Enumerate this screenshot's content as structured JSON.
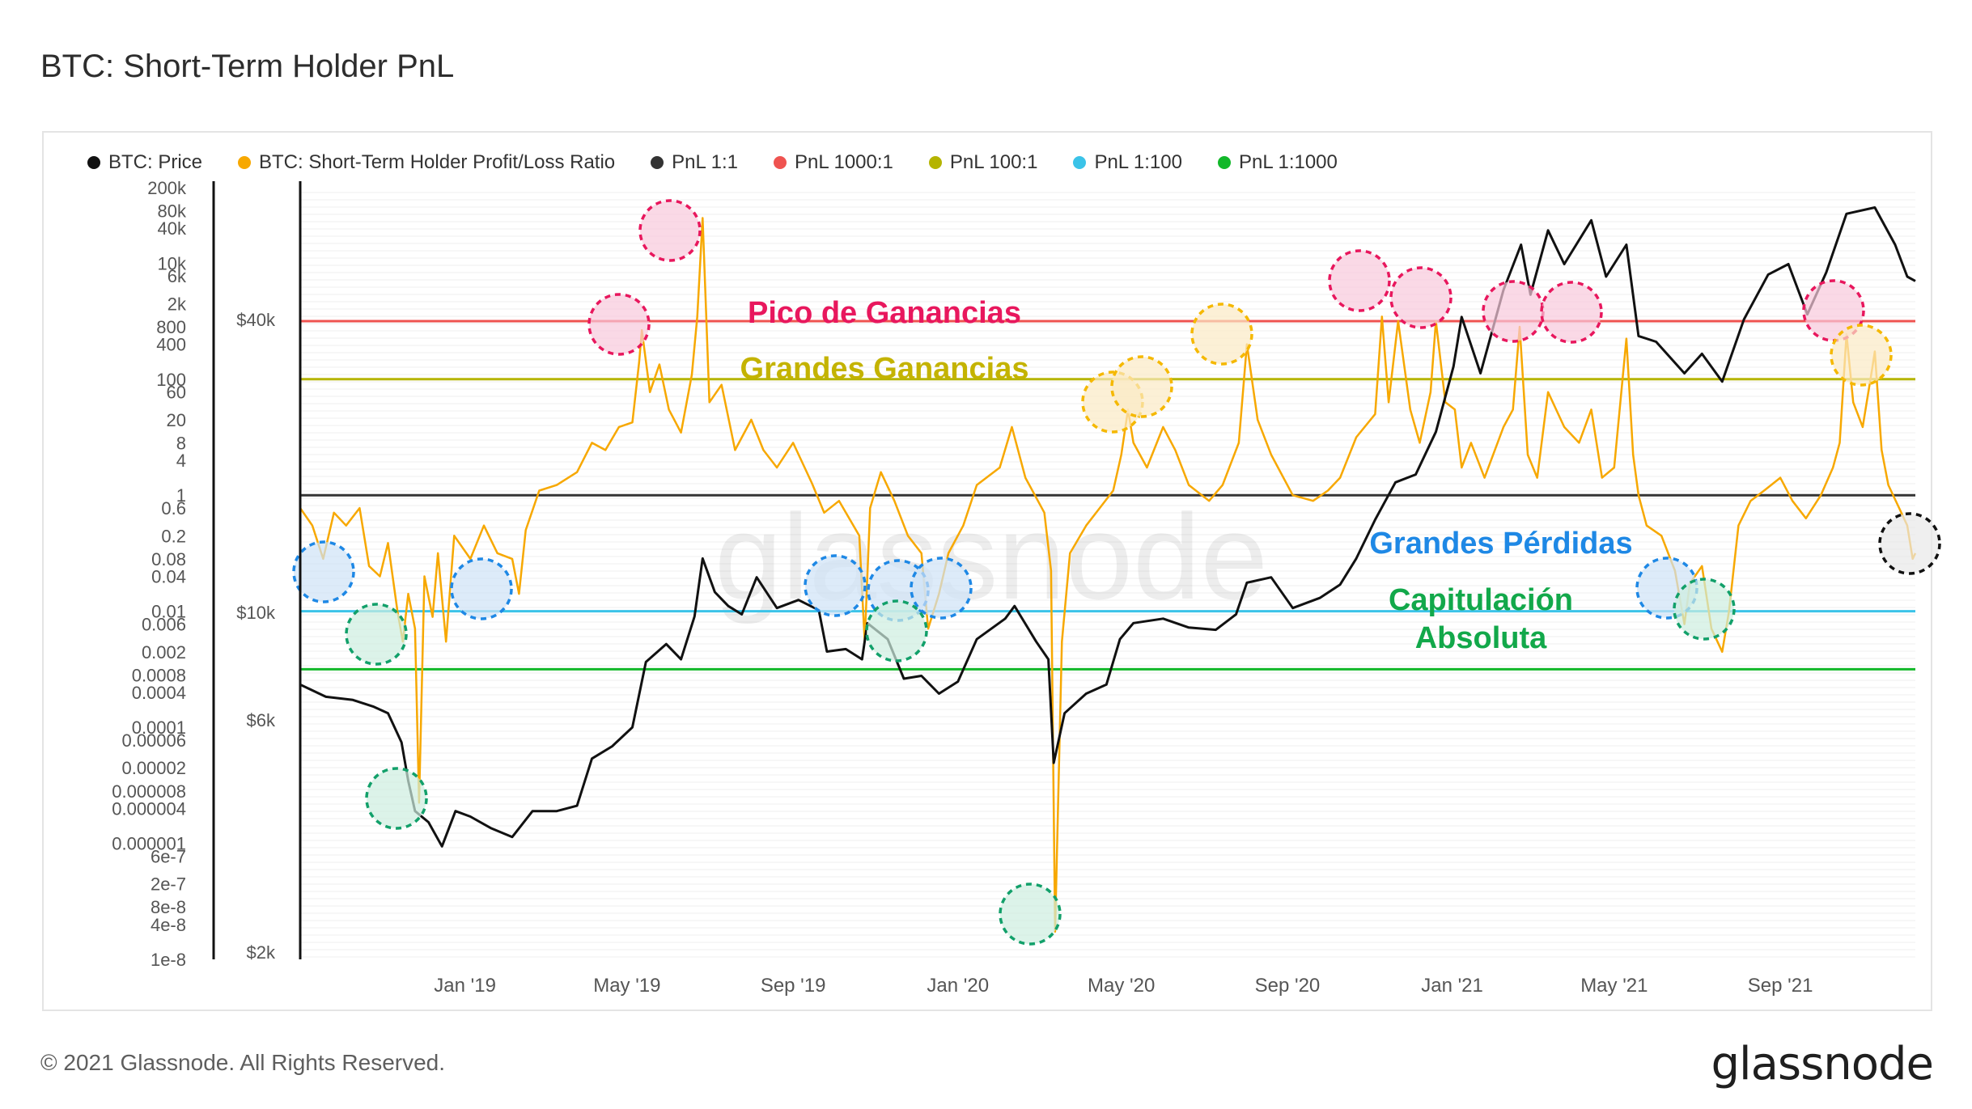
{
  "page": {
    "title": "BTC: Short-Term Holder PnL",
    "copyright": "© 2021 Glassnode. All Rights Reserved.",
    "logo_text": "glassnode",
    "watermark_text": "glassnode"
  },
  "legend": [
    {
      "label": "BTC: Price",
      "color": "#111111"
    },
    {
      "label": "BTC: Short-Term Holder Profit/Loss Ratio",
      "color": "#f7a800"
    },
    {
      "label": "PnL 1:1",
      "color": "#333333"
    },
    {
      "label": "PnL 1000:1",
      "color": "#ef5350"
    },
    {
      "label": "PnL 100:1",
      "color": "#b5b400"
    },
    {
      "label": "PnL 1:100",
      "color": "#3bc3e8"
    },
    {
      "label": "PnL 1:1000",
      "color": "#12b82a"
    }
  ],
  "annotations": [
    {
      "text": "Pico de Ganancias",
      "color": "#e8175d"
    },
    {
      "text": "Grandes Ganancias",
      "color": "#c4b300"
    },
    {
      "text": "Grandes Pérdidas",
      "color": "#1e88e5"
    },
    {
      "text": "Capitulación",
      "color": "#12a84a"
    },
    {
      "text": "Absoluta",
      "color": "#12a84a"
    }
  ],
  "chart_data": {
    "type": "line",
    "title": "BTC: Short-Term Holder PnL",
    "x_ticks": [
      "Jan '19",
      "May '19",
      "Sep '19",
      "Jan '20",
      "May '20",
      "Sep '20",
      "Jan '21",
      "May '21",
      "Sep '21"
    ],
    "x_range": [
      "2018-09-01",
      "2021-12-10"
    ],
    "left_axis": {
      "scale": "log",
      "ticks": [
        "200k",
        "80k",
        "40k",
        "10k",
        "6k",
        "2k",
        "800",
        "400",
        "100",
        "60",
        "20",
        "8",
        "4",
        "1",
        "0.6",
        "0.2",
        "0.08",
        "0.04",
        "0.01",
        "0.006",
        "0.002",
        "0.0008",
        "0.0004",
        "0.0001",
        "0.00006",
        "0.00002",
        "0.000008",
        "0.000004",
        "0.000001",
        "6e-7",
        "2e-7",
        "8e-8",
        "4e-8",
        "1e-8"
      ],
      "range": [
        1e-08,
        200000
      ]
    },
    "right_axis": {
      "scale": "log",
      "ticks": [
        "$40k",
        "$10k",
        "$6k",
        "$2k"
      ],
      "range": [
        2000,
        80000
      ]
    },
    "reference_lines": [
      {
        "name": "PnL 1000:1",
        "value": 1000,
        "color": "#ef5350"
      },
      {
        "name": "PnL 100:1",
        "value": 100,
        "color": "#b5b400"
      },
      {
        "name": "PnL 1:1",
        "value": 1,
        "color": "#333333"
      },
      {
        "name": "PnL 1:100",
        "value": 0.01,
        "color": "#3bc3e8"
      },
      {
        "name": "PnL 1:1000",
        "value": 0.001,
        "color": "#12b82a"
      }
    ],
    "series": [
      {
        "name": "BTC: Price",
        "axis": "right",
        "color": "#111111",
        "points": [
          [
            "2018-09-01",
            7100
          ],
          [
            "2018-09-20",
            6700
          ],
          [
            "2018-10-10",
            6600
          ],
          [
            "2018-10-25",
            6400
          ],
          [
            "2018-11-05",
            6200
          ],
          [
            "2018-11-15",
            5400
          ],
          [
            "2018-11-20",
            4500
          ],
          [
            "2018-11-25",
            3900
          ],
          [
            "2018-12-05",
            3700
          ],
          [
            "2018-12-15",
            3300
          ],
          [
            "2018-12-25",
            3900
          ],
          [
            "2019-01-05",
            3800
          ],
          [
            "2019-01-20",
            3600
          ],
          [
            "2019-02-05",
            3450
          ],
          [
            "2019-02-20",
            3900
          ],
          [
            "2019-03-10",
            3900
          ],
          [
            "2019-03-25",
            4000
          ],
          [
            "2019-04-05",
            5000
          ],
          [
            "2019-04-20",
            5300
          ],
          [
            "2019-05-05",
            5800
          ],
          [
            "2019-05-15",
            7900
          ],
          [
            "2019-05-30",
            8600
          ],
          [
            "2019-06-10",
            8000
          ],
          [
            "2019-06-20",
            9800
          ],
          [
            "2019-06-26",
            12900
          ],
          [
            "2019-07-05",
            11000
          ],
          [
            "2019-07-15",
            10300
          ],
          [
            "2019-07-25",
            9900
          ],
          [
            "2019-08-05",
            11800
          ],
          [
            "2019-08-20",
            10200
          ],
          [
            "2019-09-05",
            10600
          ],
          [
            "2019-09-20",
            10100
          ],
          [
            "2019-09-26",
            8300
          ],
          [
            "2019-10-10",
            8400
          ],
          [
            "2019-10-22",
            8000
          ],
          [
            "2019-10-26",
            9500
          ],
          [
            "2019-11-10",
            8800
          ],
          [
            "2019-11-22",
            7300
          ],
          [
            "2019-12-05",
            7400
          ],
          [
            "2019-12-18",
            6800
          ],
          [
            "2020-01-01",
            7200
          ],
          [
            "2020-01-15",
            8800
          ],
          [
            "2020-02-05",
            9700
          ],
          [
            "2020-02-12",
            10300
          ],
          [
            "2020-02-28",
            8700
          ],
          [
            "2020-03-08",
            8000
          ],
          [
            "2020-03-12",
            4900
          ],
          [
            "2020-03-20",
            6200
          ],
          [
            "2020-04-05",
            6800
          ],
          [
            "2020-04-20",
            7100
          ],
          [
            "2020-04-30",
            8800
          ],
          [
            "2020-05-10",
            9500
          ],
          [
            "2020-06-01",
            9700
          ],
          [
            "2020-06-20",
            9300
          ],
          [
            "2020-07-10",
            9200
          ],
          [
            "2020-07-25",
            9900
          ],
          [
            "2020-08-02",
            11500
          ],
          [
            "2020-08-20",
            11800
          ],
          [
            "2020-09-05",
            10200
          ],
          [
            "2020-09-25",
            10700
          ],
          [
            "2020-10-10",
            11400
          ],
          [
            "2020-10-22",
            12900
          ],
          [
            "2020-11-05",
            15500
          ],
          [
            "2020-11-20",
            18500
          ],
          [
            "2020-12-05",
            19200
          ],
          [
            "2020-12-20",
            23500
          ],
          [
            "2021-01-02",
            32000
          ],
          [
            "2021-01-08",
            40500
          ],
          [
            "2021-01-22",
            31000
          ],
          [
            "2021-02-08",
            46000
          ],
          [
            "2021-02-21",
            57000
          ],
          [
            "2021-02-28",
            45000
          ],
          [
            "2021-03-13",
            61000
          ],
          [
            "2021-03-25",
            52000
          ],
          [
            "2021-04-14",
            64000
          ],
          [
            "2021-04-25",
            49000
          ],
          [
            "2021-05-10",
            57000
          ],
          [
            "2021-05-19",
            37000
          ],
          [
            "2021-06-01",
            36000
          ],
          [
            "2021-06-22",
            31000
          ],
          [
            "2021-07-05",
            34000
          ],
          [
            "2021-07-20",
            29800
          ],
          [
            "2021-08-05",
            40000
          ],
          [
            "2021-08-23",
            49500
          ],
          [
            "2021-09-07",
            52000
          ],
          [
            "2021-09-21",
            41000
          ],
          [
            "2021-10-05",
            50000
          ],
          [
            "2021-10-20",
            66000
          ],
          [
            "2021-11-10",
            68000
          ],
          [
            "2021-11-25",
            57000
          ],
          [
            "2021-12-04",
            49000
          ],
          [
            "2021-12-10",
            48000
          ]
        ]
      },
      {
        "name": "BTC: Short-Term Holder Profit/Loss Ratio",
        "axis": "left",
        "color": "#f7a800",
        "points": [
          [
            "2018-09-01",
            0.6
          ],
          [
            "2018-09-10",
            0.3
          ],
          [
            "2018-09-18",
            0.08
          ],
          [
            "2018-09-26",
            0.5
          ],
          [
            "2018-10-05",
            0.3
          ],
          [
            "2018-10-15",
            0.6
          ],
          [
            "2018-10-22",
            0.06
          ],
          [
            "2018-10-30",
            0.04
          ],
          [
            "2018-11-05",
            0.15
          ],
          [
            "2018-11-12",
            0.01
          ],
          [
            "2018-11-16",
            0.003
          ],
          [
            "2018-11-20",
            0.02
          ],
          [
            "2018-11-25",
            0.005
          ],
          [
            "2018-11-28",
            5e-06
          ],
          [
            "2018-12-02",
            0.04
          ],
          [
            "2018-12-08",
            0.008
          ],
          [
            "2018-12-12",
            0.1
          ],
          [
            "2018-12-18",
            0.003
          ],
          [
            "2018-12-24",
            0.2
          ],
          [
            "2019-01-05",
            0.08
          ],
          [
            "2019-01-15",
            0.3
          ],
          [
            "2019-01-25",
            0.1
          ],
          [
            "2019-02-05",
            0.08
          ],
          [
            "2019-02-10",
            0.02
          ],
          [
            "2019-02-15",
            0.25
          ],
          [
            "2019-02-25",
            1.2
          ],
          [
            "2019-03-10",
            1.5
          ],
          [
            "2019-03-25",
            2.5
          ],
          [
            "2019-04-05",
            8
          ],
          [
            "2019-04-15",
            6
          ],
          [
            "2019-04-25",
            15
          ],
          [
            "2019-05-05",
            18
          ],
          [
            "2019-05-10",
            200
          ],
          [
            "2019-05-12",
            700
          ],
          [
            "2019-05-18",
            60
          ],
          [
            "2019-05-25",
            180
          ],
          [
            "2019-06-01",
            30
          ],
          [
            "2019-06-10",
            12
          ],
          [
            "2019-06-18",
            120
          ],
          [
            "2019-06-22",
            1200
          ],
          [
            "2019-06-26",
            60000
          ],
          [
            "2019-07-01",
            40
          ],
          [
            "2019-07-10",
            80
          ],
          [
            "2019-07-20",
            6
          ],
          [
            "2019-08-01",
            20
          ],
          [
            "2019-08-10",
            6
          ],
          [
            "2019-08-20",
            3
          ],
          [
            "2019-09-01",
            8
          ],
          [
            "2019-09-15",
            1.6
          ],
          [
            "2019-09-24",
            0.5
          ],
          [
            "2019-10-05",
            0.8
          ],
          [
            "2019-10-20",
            0.2
          ],
          [
            "2019-10-24",
            0.003
          ],
          [
            "2019-10-28",
            0.6
          ],
          [
            "2019-11-05",
            2.5
          ],
          [
            "2019-11-15",
            0.8
          ],
          [
            "2019-11-25",
            0.2
          ],
          [
            "2019-12-05",
            0.1
          ],
          [
            "2019-12-10",
            0.005
          ],
          [
            "2019-12-18",
            0.02
          ],
          [
            "2019-12-25",
            0.1
          ],
          [
            "2020-01-05",
            0.3
          ],
          [
            "2020-01-15",
            1.5
          ],
          [
            "2020-02-01",
            3
          ],
          [
            "2020-02-10",
            15
          ],
          [
            "2020-02-20",
            2
          ],
          [
            "2020-03-05",
            0.5
          ],
          [
            "2020-03-10",
            0.05
          ],
          [
            "2020-03-13",
            3e-08
          ],
          [
            "2020-03-18",
            0.003
          ],
          [
            "2020-03-24",
            0.1
          ],
          [
            "2020-04-05",
            0.3
          ],
          [
            "2020-04-15",
            0.6
          ],
          [
            "2020-04-25",
            1.2
          ],
          [
            "2020-05-01",
            5
          ],
          [
            "2020-05-06",
            30
          ],
          [
            "2020-05-10",
            8
          ],
          [
            "2020-05-20",
            3
          ],
          [
            "2020-06-01",
            15
          ],
          [
            "2020-06-10",
            6
          ],
          [
            "2020-06-20",
            1.5
          ],
          [
            "2020-07-05",
            0.8
          ],
          [
            "2020-07-15",
            1.5
          ],
          [
            "2020-07-27",
            8
          ],
          [
            "2020-08-02",
            400
          ],
          [
            "2020-08-10",
            20
          ],
          [
            "2020-08-20",
            5
          ],
          [
            "2020-09-05",
            1
          ],
          [
            "2020-09-20",
            0.8
          ],
          [
            "2020-10-01",
            1.2
          ],
          [
            "2020-10-10",
            2
          ],
          [
            "2020-10-22",
            10
          ],
          [
            "2020-11-05",
            25
          ],
          [
            "2020-11-10",
            1200
          ],
          [
            "2020-11-15",
            40
          ],
          [
            "2020-11-22",
            1000
          ],
          [
            "2020-12-01",
            30
          ],
          [
            "2020-12-08",
            8
          ],
          [
            "2020-12-16",
            60
          ],
          [
            "2020-12-20",
            1000
          ],
          [
            "2020-12-27",
            40
          ],
          [
            "2021-01-03",
            30
          ],
          [
            "2021-01-08",
            3
          ],
          [
            "2021-01-15",
            8
          ],
          [
            "2021-01-25",
            2
          ],
          [
            "2021-02-08",
            15
          ],
          [
            "2021-02-15",
            30
          ],
          [
            "2021-02-20",
            800
          ],
          [
            "2021-02-26",
            5
          ],
          [
            "2021-03-05",
            2
          ],
          [
            "2021-03-13",
            60
          ],
          [
            "2021-03-25",
            15
          ],
          [
            "2021-04-05",
            8
          ],
          [
            "2021-04-14",
            30
          ],
          [
            "2021-04-22",
            2
          ],
          [
            "2021-05-01",
            3
          ],
          [
            "2021-05-10",
            500
          ],
          [
            "2021-05-15",
            5
          ],
          [
            "2021-05-19",
            1
          ],
          [
            "2021-05-25",
            0.3
          ],
          [
            "2021-06-05",
            0.2
          ],
          [
            "2021-06-15",
            0.05
          ],
          [
            "2021-06-22",
            0.006
          ],
          [
            "2021-06-26",
            0.03
          ],
          [
            "2021-07-05",
            0.06
          ],
          [
            "2021-07-12",
            0.005
          ],
          [
            "2021-07-20",
            0.002
          ],
          [
            "2021-07-25",
            0.01
          ],
          [
            "2021-08-01",
            0.3
          ],
          [
            "2021-08-10",
            0.8
          ],
          [
            "2021-08-20",
            1.2
          ],
          [
            "2021-09-01",
            2
          ],
          [
            "2021-09-10",
            0.8
          ],
          [
            "2021-09-20",
            0.4
          ],
          [
            "2021-10-01",
            1
          ],
          [
            "2021-10-10",
            3
          ],
          [
            "2021-10-15",
            8
          ],
          [
            "2021-10-20",
            600
          ],
          [
            "2021-10-25",
            40
          ],
          [
            "2021-11-01",
            15
          ],
          [
            "2021-11-08",
            150
          ],
          [
            "2021-11-10",
            300
          ],
          [
            "2021-11-15",
            6
          ],
          [
            "2021-11-20",
            1.5
          ],
          [
            "2021-11-28",
            0.6
          ],
          [
            "2021-12-04",
            0.3
          ],
          [
            "2021-12-08",
            0.08
          ],
          [
            "2021-12-10",
            0.1
          ]
        ]
      }
    ]
  }
}
